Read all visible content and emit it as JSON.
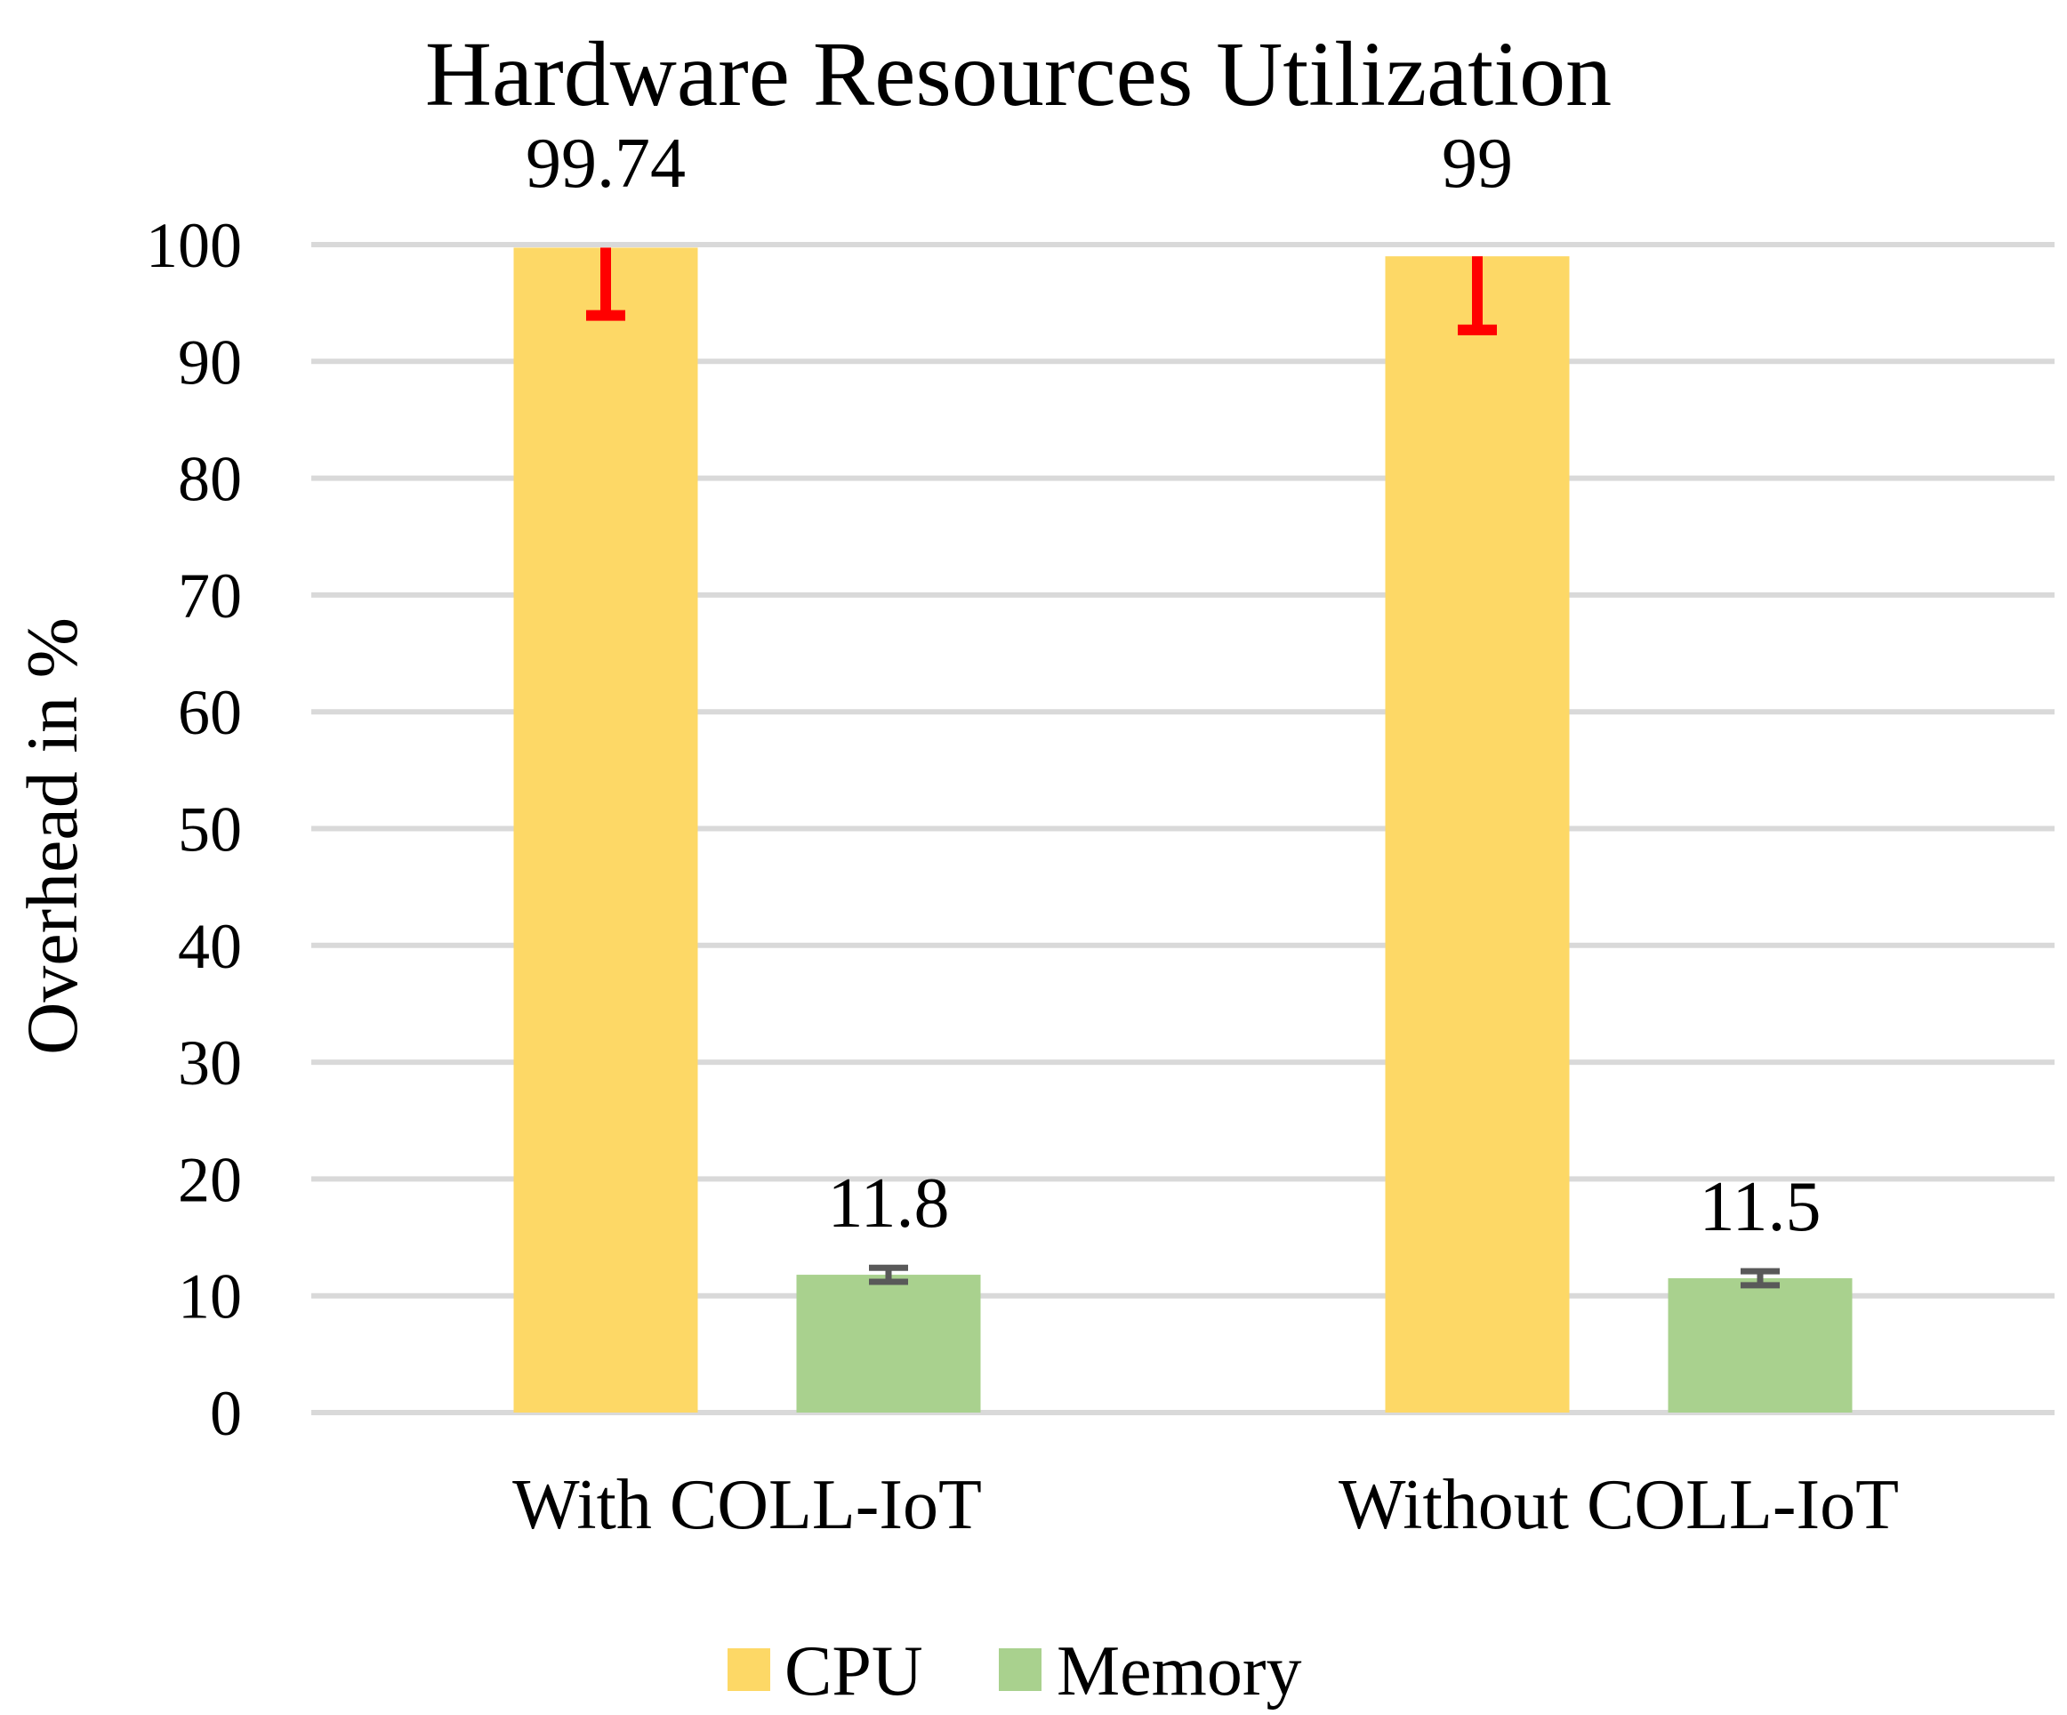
{
  "chart_data": {
    "type": "bar",
    "title": "Hardware Resources Utilization",
    "xlabel": "",
    "ylabel": "Overhead in %",
    "ylim": [
      0,
      100
    ],
    "yticks": [
      0,
      10,
      20,
      30,
      40,
      50,
      60,
      70,
      80,
      90,
      100
    ],
    "ytick_labels": [
      "0",
      "10",
      "20",
      "30",
      "40",
      "50",
      "60",
      "70",
      "80",
      "90",
      "100"
    ],
    "grid": true,
    "legend_position": "bottom",
    "categories": [
      "With COLL-IoT",
      "Without COLL-IoT"
    ],
    "series": [
      {
        "name": "CPU",
        "color": "#fdd866",
        "error_color": "#ff0000",
        "values": [
          99.74,
          99
        ],
        "data_labels": [
          "99.74",
          "99"
        ],
        "error_lower": [
          5.8,
          6.3
        ],
        "error_upper": [
          0,
          0
        ]
      },
      {
        "name": "Memory",
        "color": "#a9d18e",
        "error_color": "#595959",
        "values": [
          11.8,
          11.5
        ],
        "data_labels": [
          "11.8",
          "11.5"
        ],
        "error_lower": [
          0.6,
          0.6
        ],
        "error_upper": [
          0.6,
          0.6
        ]
      }
    ]
  }
}
